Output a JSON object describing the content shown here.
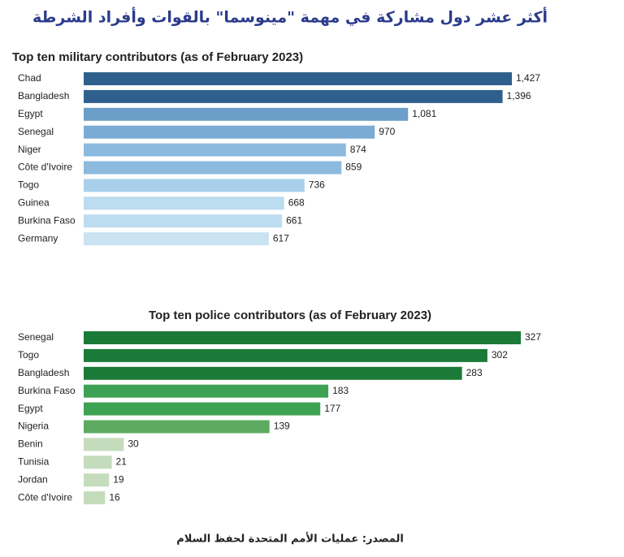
{
  "title": "أكثر عشر دول مشاركة في مهمة \"مينوسما\" بالقوات وأفراد الشرطة",
  "source": "المصدر: عمليات الأمم المتحدة لحفظ السلام",
  "chart_data": [
    {
      "type": "bar",
      "title": "Top ten military contributors (as of February 2023)",
      "categories": [
        "Chad",
        "Bangladesh",
        "Egypt",
        "Senegal",
        "Niger",
        "Côte d'Ivoire",
        "Togo",
        "Guinea",
        "Burkina Faso",
        "Germany"
      ],
      "values": [
        1427,
        1396,
        1081,
        970,
        874,
        859,
        736,
        668,
        661,
        617
      ],
      "value_labels": [
        "1,427",
        "1,396",
        "1,081",
        "970",
        "874",
        "859",
        "736",
        "668",
        "661",
        "617"
      ],
      "colors": [
        "#2f5f8c",
        "#2f5f8c",
        "#6b9ec8",
        "#7aabd4",
        "#8bbade",
        "#8bbade",
        "#a9d0ea",
        "#bcdcef",
        "#bcdcef",
        "#c9e3f3"
      ]
    },
    {
      "type": "bar",
      "title": "Top ten police contributors (as of February 2023)",
      "categories": [
        "Senegal",
        "Togo",
        "Bangladesh",
        "Burkina Faso",
        "Egypt",
        "Nigeria",
        "Benin",
        "Tunisia",
        "Jordan",
        "Côte d'Ivoire"
      ],
      "values": [
        327,
        302,
        283,
        183,
        177,
        139,
        30,
        21,
        19,
        16
      ],
      "colors": [
        "#1b7a37",
        "#1b7a37",
        "#1b7a37",
        "#3ea254",
        "#3ea254",
        "#5cab60",
        "#c4dcbc",
        "#c4dcbc",
        "#c4dcbc",
        "#c4dcbc"
      ]
    }
  ]
}
